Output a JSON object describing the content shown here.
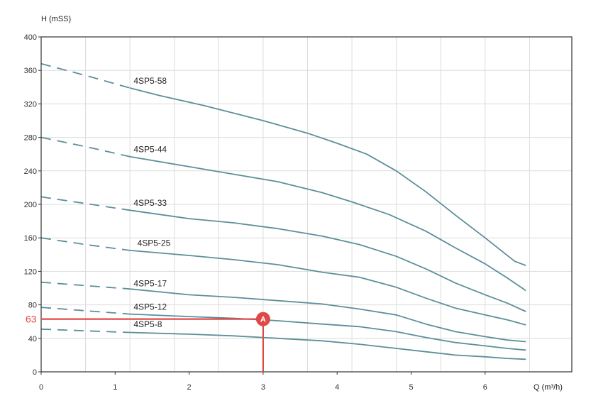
{
  "chart_data": {
    "type": "line",
    "xlabel": "Q (m³/h)",
    "ylabel": "H (mSS)",
    "xlim": [
      0,
      7.2
    ],
    "ylim": [
      0,
      400
    ],
    "x_ticks": [
      "0",
      "1",
      "2",
      "3",
      "4",
      "5",
      "6"
    ],
    "y_ticks": [
      "0",
      "40",
      "80",
      "120",
      "160",
      "200",
      "240",
      "280",
      "320",
      "360",
      "400"
    ],
    "grid": true,
    "legend": "none",
    "colors": {
      "curve": "#5c8f9a",
      "grid": "#dcdcdc",
      "axis": "#333333",
      "operating_point": "#e04848"
    },
    "series": [
      {
        "name": "4SP5-58",
        "dashed_until_x": 1.2,
        "label_at": [
          1.25,
          340
        ],
        "points": [
          [
            0,
            368
          ],
          [
            0.6,
            354
          ],
          [
            1.2,
            339
          ],
          [
            1.6,
            330
          ],
          [
            2.2,
            318
          ],
          [
            3,
            300
          ],
          [
            3.6,
            285
          ],
          [
            4,
            273
          ],
          [
            4.4,
            260
          ],
          [
            4.8,
            240
          ],
          [
            5.2,
            215
          ],
          [
            5.6,
            187
          ],
          [
            6,
            160
          ],
          [
            6.4,
            132
          ],
          [
            6.55,
            127
          ]
        ]
      },
      {
        "name": "4SP5-44",
        "dashed_until_x": 1.2,
        "label_at": [
          1.25,
          258
        ],
        "points": [
          [
            0,
            280
          ],
          [
            0.6,
            269
          ],
          [
            1.2,
            257
          ],
          [
            2,
            245
          ],
          [
            2.6,
            236
          ],
          [
            3.2,
            227
          ],
          [
            3.8,
            214
          ],
          [
            4.2,
            203
          ],
          [
            4.7,
            188
          ],
          [
            5.2,
            168
          ],
          [
            5.6,
            148
          ],
          [
            6,
            129
          ],
          [
            6.3,
            112
          ],
          [
            6.55,
            97
          ]
        ]
      },
      {
        "name": "4SP5-33",
        "dashed_until_x": 1.2,
        "label_at": [
          1.25,
          194
        ],
        "points": [
          [
            0,
            209
          ],
          [
            0.6,
            201
          ],
          [
            1.2,
            193
          ],
          [
            2,
            183
          ],
          [
            2.6,
            178
          ],
          [
            3.2,
            171
          ],
          [
            3.8,
            162
          ],
          [
            4.3,
            152
          ],
          [
            4.8,
            138
          ],
          [
            5.2,
            123
          ],
          [
            5.6,
            106
          ],
          [
            6,
            92
          ],
          [
            6.3,
            82
          ],
          [
            6.55,
            72
          ]
        ]
      },
      {
        "name": "4SP5-25",
        "dashed_until_x": 1.2,
        "label_at": [
          1.3,
          146
        ],
        "points": [
          [
            0,
            160
          ],
          [
            0.6,
            152
          ],
          [
            1.2,
            145
          ],
          [
            2,
            139
          ],
          [
            2.6,
            134
          ],
          [
            3.2,
            128
          ],
          [
            3.8,
            119
          ],
          [
            4.3,
            113
          ],
          [
            4.8,
            101
          ],
          [
            5.2,
            88
          ],
          [
            5.6,
            76
          ],
          [
            6,
            68
          ],
          [
            6.3,
            62
          ],
          [
            6.55,
            56
          ]
        ]
      },
      {
        "name": "4SP5-17",
        "dashed_until_x": 1.2,
        "label_at": [
          1.25,
          98
        ],
        "points": [
          [
            0,
            107
          ],
          [
            0.6,
            103
          ],
          [
            1.2,
            99
          ],
          [
            2,
            92
          ],
          [
            2.6,
            89
          ],
          [
            3.2,
            85
          ],
          [
            3.8,
            81
          ],
          [
            4.3,
            75
          ],
          [
            4.8,
            68
          ],
          [
            5.2,
            57
          ],
          [
            5.6,
            48
          ],
          [
            6,
            42
          ],
          [
            6.3,
            38
          ],
          [
            6.55,
            36
          ]
        ]
      },
      {
        "name": "4SP5-12",
        "dashed_until_x": 1.2,
        "label_at": [
          1.25,
          70
        ],
        "points": [
          [
            0,
            77
          ],
          [
            0.6,
            73
          ],
          [
            1.2,
            69
          ],
          [
            2,
            66
          ],
          [
            2.6,
            64
          ],
          [
            3.2,
            61
          ],
          [
            3.8,
            57
          ],
          [
            4.3,
            54
          ],
          [
            4.8,
            48
          ],
          [
            5.2,
            41
          ],
          [
            5.6,
            35
          ],
          [
            6,
            31
          ],
          [
            6.3,
            28
          ],
          [
            6.55,
            26
          ]
        ]
      },
      {
        "name": "4SP5-8",
        "dashed_until_x": 1.2,
        "label_at": [
          1.25,
          49
        ],
        "points": [
          [
            0,
            51
          ],
          [
            0.6,
            49
          ],
          [
            1.2,
            47
          ],
          [
            2,
            45
          ],
          [
            2.6,
            43
          ],
          [
            3.2,
            40
          ],
          [
            3.8,
            37
          ],
          [
            4.3,
            33
          ],
          [
            4.8,
            28
          ],
          [
            5.2,
            24
          ],
          [
            5.6,
            20
          ],
          [
            6,
            18
          ],
          [
            6.3,
            16
          ],
          [
            6.55,
            15
          ]
        ]
      }
    ],
    "operating_point": {
      "label": "A",
      "x": 3,
      "y": 63,
      "y_value_label": "63"
    }
  }
}
